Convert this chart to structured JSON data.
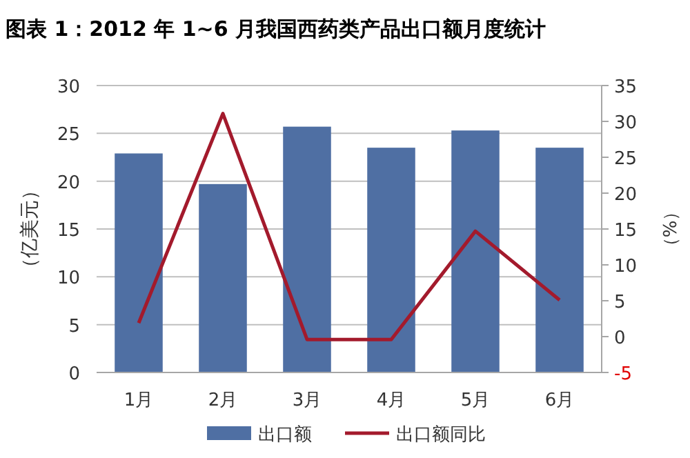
{
  "chart_data": {
    "type": "bar",
    "title": "图表 1：2012 年 1~6 月我国西药类产品出口额月度统计",
    "ylabel": "（亿美元）",
    "y2label": "（%）",
    "categories": [
      "1月",
      "2月",
      "3月",
      "4月",
      "5月",
      "6月"
    ],
    "series": [
      {
        "name": "出口额",
        "color": "#4f6fa3",
        "values": [
          22.9,
          19.7,
          25.7,
          23.5,
          25.3,
          23.5
        ]
      },
      {
        "name": "出口额同比",
        "type": "line",
        "axis": "y2",
        "color": "#a31a2c",
        "values": [
          1.9,
          31.1,
          -0.4,
          -0.4,
          14.7,
          5.1
        ]
      }
    ],
    "ylim": [
      0,
      30
    ],
    "yticks": [
      0,
      5,
      10,
      15,
      20,
      25,
      30
    ],
    "y2lim": [
      -5,
      35
    ],
    "y2ticks": [
      -5,
      0,
      5,
      10,
      15,
      20,
      25,
      30,
      35
    ],
    "grid": "y",
    "legend": "bottom",
    "marker": "none",
    "line_style": "solid"
  }
}
